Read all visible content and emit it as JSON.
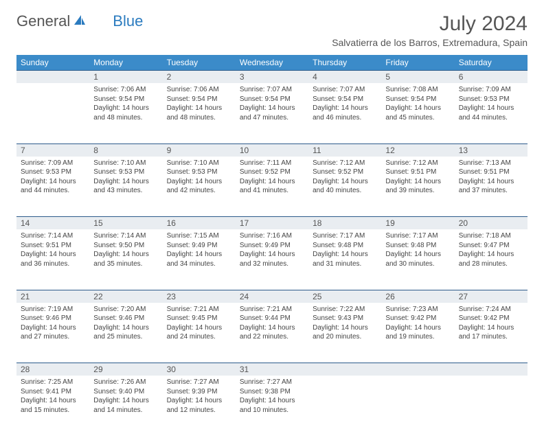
{
  "logo": {
    "textA": "General",
    "textB": "Blue"
  },
  "title": "July 2024",
  "location": "Salvatierra de los Barros, Extremadura, Spain",
  "colors": {
    "headerBg": "#3b8bc9",
    "headerText": "#ffffff",
    "dayNumBg": "#e9edf1",
    "borderTop": "#2b5a8a",
    "bodyText": "#444444",
    "logoBlue": "#2b7bbf"
  },
  "dayHeaders": [
    "Sunday",
    "Monday",
    "Tuesday",
    "Wednesday",
    "Thursday",
    "Friday",
    "Saturday"
  ],
  "weeks": [
    {
      "nums": [
        "",
        "1",
        "2",
        "3",
        "4",
        "5",
        "6"
      ],
      "cells": [
        null,
        {
          "sr": "Sunrise: 7:06 AM",
          "ss": "Sunset: 9:54 PM",
          "d1": "Daylight: 14 hours",
          "d2": "and 48 minutes."
        },
        {
          "sr": "Sunrise: 7:06 AM",
          "ss": "Sunset: 9:54 PM",
          "d1": "Daylight: 14 hours",
          "d2": "and 48 minutes."
        },
        {
          "sr": "Sunrise: 7:07 AM",
          "ss": "Sunset: 9:54 PM",
          "d1": "Daylight: 14 hours",
          "d2": "and 47 minutes."
        },
        {
          "sr": "Sunrise: 7:07 AM",
          "ss": "Sunset: 9:54 PM",
          "d1": "Daylight: 14 hours",
          "d2": "and 46 minutes."
        },
        {
          "sr": "Sunrise: 7:08 AM",
          "ss": "Sunset: 9:54 PM",
          "d1": "Daylight: 14 hours",
          "d2": "and 45 minutes."
        },
        {
          "sr": "Sunrise: 7:09 AM",
          "ss": "Sunset: 9:53 PM",
          "d1": "Daylight: 14 hours",
          "d2": "and 44 minutes."
        }
      ]
    },
    {
      "nums": [
        "7",
        "8",
        "9",
        "10",
        "11",
        "12",
        "13"
      ],
      "cells": [
        {
          "sr": "Sunrise: 7:09 AM",
          "ss": "Sunset: 9:53 PM",
          "d1": "Daylight: 14 hours",
          "d2": "and 44 minutes."
        },
        {
          "sr": "Sunrise: 7:10 AM",
          "ss": "Sunset: 9:53 PM",
          "d1": "Daylight: 14 hours",
          "d2": "and 43 minutes."
        },
        {
          "sr": "Sunrise: 7:10 AM",
          "ss": "Sunset: 9:53 PM",
          "d1": "Daylight: 14 hours",
          "d2": "and 42 minutes."
        },
        {
          "sr": "Sunrise: 7:11 AM",
          "ss": "Sunset: 9:52 PM",
          "d1": "Daylight: 14 hours",
          "d2": "and 41 minutes."
        },
        {
          "sr": "Sunrise: 7:12 AM",
          "ss": "Sunset: 9:52 PM",
          "d1": "Daylight: 14 hours",
          "d2": "and 40 minutes."
        },
        {
          "sr": "Sunrise: 7:12 AM",
          "ss": "Sunset: 9:51 PM",
          "d1": "Daylight: 14 hours",
          "d2": "and 39 minutes."
        },
        {
          "sr": "Sunrise: 7:13 AM",
          "ss": "Sunset: 9:51 PM",
          "d1": "Daylight: 14 hours",
          "d2": "and 37 minutes."
        }
      ]
    },
    {
      "nums": [
        "14",
        "15",
        "16",
        "17",
        "18",
        "19",
        "20"
      ],
      "cells": [
        {
          "sr": "Sunrise: 7:14 AM",
          "ss": "Sunset: 9:51 PM",
          "d1": "Daylight: 14 hours",
          "d2": "and 36 minutes."
        },
        {
          "sr": "Sunrise: 7:14 AM",
          "ss": "Sunset: 9:50 PM",
          "d1": "Daylight: 14 hours",
          "d2": "and 35 minutes."
        },
        {
          "sr": "Sunrise: 7:15 AM",
          "ss": "Sunset: 9:49 PM",
          "d1": "Daylight: 14 hours",
          "d2": "and 34 minutes."
        },
        {
          "sr": "Sunrise: 7:16 AM",
          "ss": "Sunset: 9:49 PM",
          "d1": "Daylight: 14 hours",
          "d2": "and 32 minutes."
        },
        {
          "sr": "Sunrise: 7:17 AM",
          "ss": "Sunset: 9:48 PM",
          "d1": "Daylight: 14 hours",
          "d2": "and 31 minutes."
        },
        {
          "sr": "Sunrise: 7:17 AM",
          "ss": "Sunset: 9:48 PM",
          "d1": "Daylight: 14 hours",
          "d2": "and 30 minutes."
        },
        {
          "sr": "Sunrise: 7:18 AM",
          "ss": "Sunset: 9:47 PM",
          "d1": "Daylight: 14 hours",
          "d2": "and 28 minutes."
        }
      ]
    },
    {
      "nums": [
        "21",
        "22",
        "23",
        "24",
        "25",
        "26",
        "27"
      ],
      "cells": [
        {
          "sr": "Sunrise: 7:19 AM",
          "ss": "Sunset: 9:46 PM",
          "d1": "Daylight: 14 hours",
          "d2": "and 27 minutes."
        },
        {
          "sr": "Sunrise: 7:20 AM",
          "ss": "Sunset: 9:46 PM",
          "d1": "Daylight: 14 hours",
          "d2": "and 25 minutes."
        },
        {
          "sr": "Sunrise: 7:21 AM",
          "ss": "Sunset: 9:45 PM",
          "d1": "Daylight: 14 hours",
          "d2": "and 24 minutes."
        },
        {
          "sr": "Sunrise: 7:21 AM",
          "ss": "Sunset: 9:44 PM",
          "d1": "Daylight: 14 hours",
          "d2": "and 22 minutes."
        },
        {
          "sr": "Sunrise: 7:22 AM",
          "ss": "Sunset: 9:43 PM",
          "d1": "Daylight: 14 hours",
          "d2": "and 20 minutes."
        },
        {
          "sr": "Sunrise: 7:23 AM",
          "ss": "Sunset: 9:42 PM",
          "d1": "Daylight: 14 hours",
          "d2": "and 19 minutes."
        },
        {
          "sr": "Sunrise: 7:24 AM",
          "ss": "Sunset: 9:42 PM",
          "d1": "Daylight: 14 hours",
          "d2": "and 17 minutes."
        }
      ]
    },
    {
      "nums": [
        "28",
        "29",
        "30",
        "31",
        "",
        "",
        ""
      ],
      "cells": [
        {
          "sr": "Sunrise: 7:25 AM",
          "ss": "Sunset: 9:41 PM",
          "d1": "Daylight: 14 hours",
          "d2": "and 15 minutes."
        },
        {
          "sr": "Sunrise: 7:26 AM",
          "ss": "Sunset: 9:40 PM",
          "d1": "Daylight: 14 hours",
          "d2": "and 14 minutes."
        },
        {
          "sr": "Sunrise: 7:27 AM",
          "ss": "Sunset: 9:39 PM",
          "d1": "Daylight: 14 hours",
          "d2": "and 12 minutes."
        },
        {
          "sr": "Sunrise: 7:27 AM",
          "ss": "Sunset: 9:38 PM",
          "d1": "Daylight: 14 hours",
          "d2": "and 10 minutes."
        },
        null,
        null,
        null
      ]
    }
  ]
}
